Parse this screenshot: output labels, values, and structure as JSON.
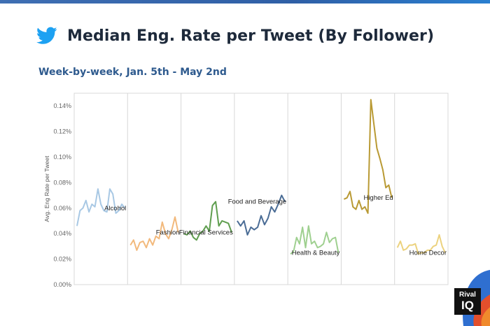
{
  "header": {
    "title": "Median Eng. Rate per Tweet (By Follower)",
    "subtitle": "Week-by-week, Jan. 5th - May 2nd",
    "icon": "twitter-bird-icon"
  },
  "branding": {
    "line1": "Rival",
    "line2": "IQ"
  },
  "colors": {
    "Alcohol": "#a8c8e4",
    "Fashion": "#f2b97c",
    "Financial Services": "#5f9e4f",
    "Food and Beverage": "#4a6c95",
    "Health & Beauty": "#9fd090",
    "Higher Ed": "#b99a34",
    "Home Decor": "#ecd27e"
  },
  "chart_data": {
    "type": "line",
    "title": "Median Eng. Rate per Tweet (By Follower)",
    "subtitle": "Week-by-week, Jan. 5th - May 2nd",
    "ylabel": "Avg. Eng Rate per Tweet",
    "ylim": [
      0,
      0.15
    ],
    "yticks": [
      "0.00%",
      "0.02%",
      "0.04%",
      "0.06%",
      "0.08%",
      "0.10%",
      "0.12%",
      "0.14%"
    ],
    "ytick_values": [
      0,
      0.02,
      0.04,
      0.06,
      0.08,
      0.1,
      0.12,
      0.14
    ],
    "grid": false,
    "series": [
      {
        "name": "Alcohol",
        "values": [
          0.046,
          0.058,
          0.06,
          0.066,
          0.057,
          0.063,
          0.061,
          0.075,
          0.063,
          0.058,
          0.057,
          0.075,
          0.071,
          0.056,
          0.058,
          0.063,
          0.06
        ]
      },
      {
        "name": "Fashion",
        "values": [
          0.031,
          0.035,
          0.027,
          0.033,
          0.034,
          0.029,
          0.036,
          0.031,
          0.038,
          0.036,
          0.049,
          0.04,
          0.036,
          0.043,
          0.053,
          0.041
        ]
      },
      {
        "name": "Financial Services",
        "values": [
          0.04,
          0.039,
          0.042,
          0.037,
          0.035,
          0.04,
          0.042,
          0.046,
          0.042,
          0.062,
          0.065,
          0.046,
          0.05,
          0.049,
          0.048,
          0.041
        ]
      },
      {
        "name": "Food and Beverage",
        "values": [
          0.05,
          0.046,
          0.05,
          0.039,
          0.045,
          0.043,
          0.045,
          0.054,
          0.047,
          0.052,
          0.061,
          0.057,
          0.063,
          0.07,
          0.065
        ]
      },
      {
        "name": "Health & Beauty",
        "values": [
          0.024,
          0.026,
          0.037,
          0.032,
          0.045,
          0.029,
          0.046,
          0.032,
          0.034,
          0.029,
          0.03,
          0.032,
          0.041,
          0.033,
          0.036,
          0.037,
          0.025
        ]
      },
      {
        "name": "Higher Ed",
        "values": [
          0.067,
          0.068,
          0.073,
          0.061,
          0.059,
          0.066,
          0.059,
          0.061,
          0.056,
          0.145,
          0.126,
          0.107,
          0.099,
          0.09,
          0.076,
          0.078,
          0.068
        ]
      },
      {
        "name": "Home Decor",
        "values": [
          0.029,
          0.034,
          0.027,
          0.028,
          0.031,
          0.031,
          0.032,
          0.024,
          0.025,
          0.025,
          0.027,
          0.027,
          0.03,
          0.031,
          0.039,
          0.03,
          0.025
        ]
      }
    ]
  }
}
